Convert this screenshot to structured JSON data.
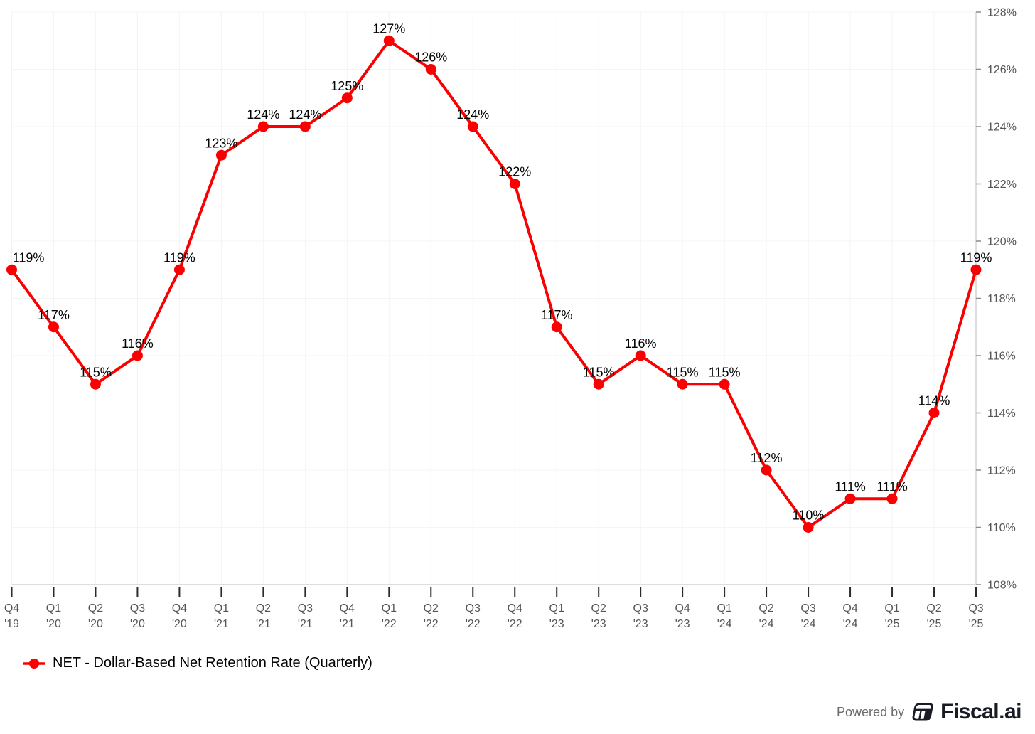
{
  "chart_data": {
    "type": "line",
    "title": "",
    "categories": [
      [
        "Q4",
        "'19"
      ],
      [
        "Q1",
        "'20"
      ],
      [
        "Q2",
        "'20"
      ],
      [
        "Q3",
        "'20"
      ],
      [
        "Q4",
        "'20"
      ],
      [
        "Q1",
        "'21"
      ],
      [
        "Q2",
        "'21"
      ],
      [
        "Q3",
        "'21"
      ],
      [
        "Q4",
        "'21"
      ],
      [
        "Q1",
        "'22"
      ],
      [
        "Q2",
        "'22"
      ],
      [
        "Q3",
        "'22"
      ],
      [
        "Q4",
        "'22"
      ],
      [
        "Q1",
        "'23"
      ],
      [
        "Q2",
        "'23"
      ],
      [
        "Q3",
        "'23"
      ],
      [
        "Q4",
        "'23"
      ],
      [
        "Q1",
        "'24"
      ],
      [
        "Q2",
        "'24"
      ],
      [
        "Q3",
        "'24"
      ],
      [
        "Q4",
        "'24"
      ],
      [
        "Q1",
        "'25"
      ],
      [
        "Q2",
        "'25"
      ],
      [
        "Q3",
        "'25"
      ]
    ],
    "series": [
      {
        "name": "NET - Dollar-Based Net Retention Rate (Quarterly)",
        "values": [
          119,
          117,
          115,
          116,
          119,
          123,
          124,
          124,
          125,
          127,
          126,
          124,
          122,
          117,
          115,
          116,
          115,
          115,
          112,
          110,
          111,
          111,
          114,
          119
        ],
        "color": "#fa0000"
      }
    ],
    "data_label_suffix": "%",
    "ylim": [
      108,
      128
    ],
    "ytick_step": 2,
    "ytick_suffix": "%",
    "yticks": [
      "128%",
      "126%",
      "124%",
      "122%",
      "120%",
      "118%",
      "116%",
      "114%",
      "112%",
      "110%",
      "108%"
    ],
    "y_axis_side": "right",
    "grid": true,
    "legend_position": "bottom-left",
    "style": {
      "line_color": "#fa0000",
      "marker_color": "#fa0000",
      "grid_color": "#f4f4f4",
      "domain_color": "#d4d4d4",
      "x_tick_color": "#2b2b2b",
      "y_tick_color": "#8c8c8c",
      "tick_label_color": "#555555",
      "data_label_color": "#000000"
    }
  },
  "legend": {
    "label": "NET - Dollar-Based Net Retention Rate (Quarterly)"
  },
  "footer": {
    "powered_by": "Powered by",
    "brand": "Fiscal.ai"
  }
}
